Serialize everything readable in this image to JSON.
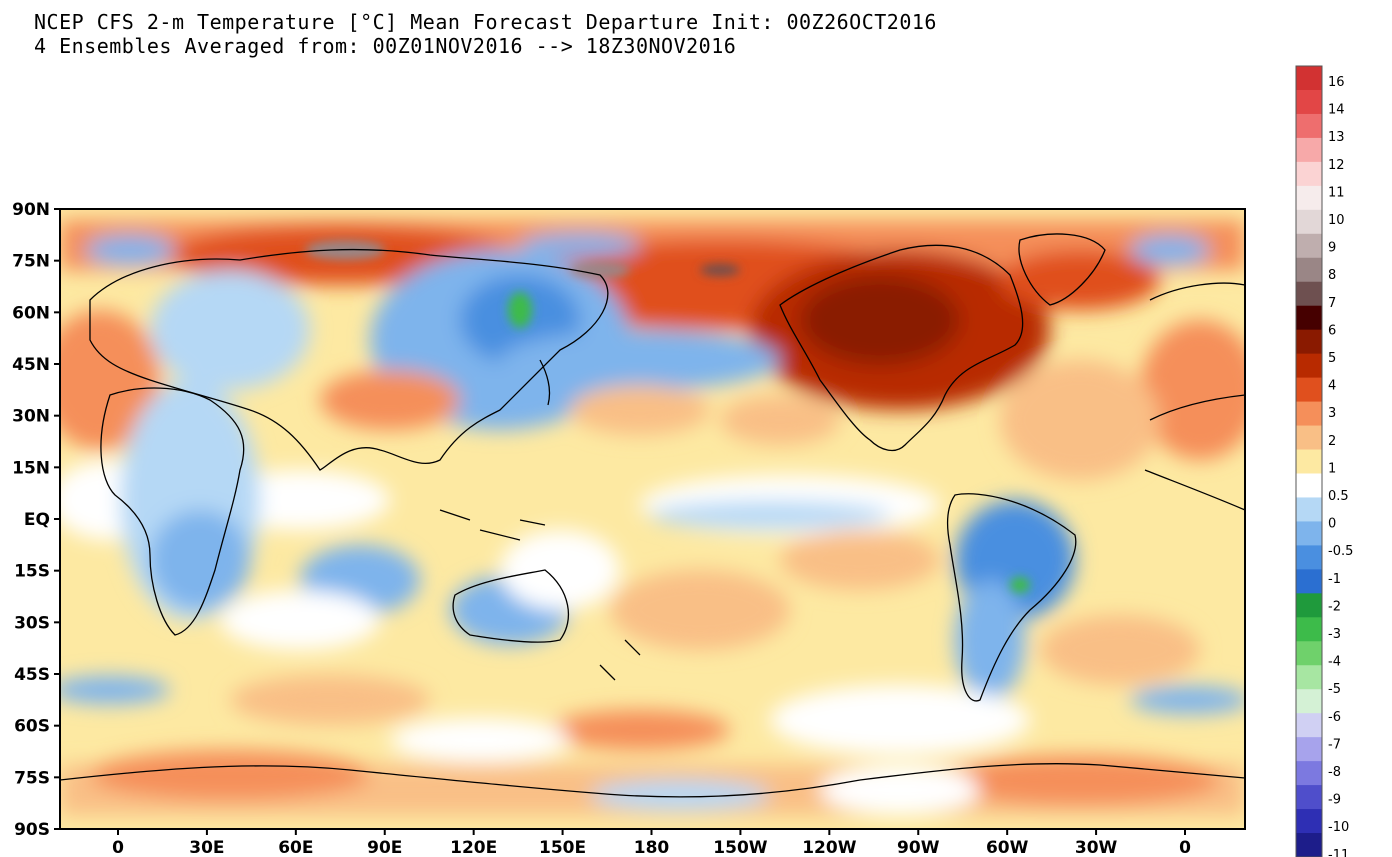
{
  "header": {
    "line1": "NCEP CFS 2-m Temperature [°C] Mean Forecast Departure Init: 00Z26OCT2016",
    "line2": "4 Ensembles Averaged from: 00Z01NOV2016 --> 18Z30NOV2016"
  },
  "map": {
    "lat_labels": [
      "90N",
      "75N",
      "60N",
      "45N",
      "30N",
      "15N",
      "EQ",
      "15S",
      "30S",
      "45S",
      "60S",
      "75S",
      "90S"
    ],
    "lat_values": [
      90,
      75,
      60,
      45,
      30,
      15,
      0,
      -15,
      -30,
      -45,
      -60,
      -75,
      -90
    ],
    "lon_labels": [
      "0",
      "30E",
      "60E",
      "90E",
      "120E",
      "150E",
      "180",
      "150W",
      "120W",
      "90W",
      "60W",
      "30W",
      "0"
    ],
    "lon_values": [
      0,
      30,
      60,
      90,
      120,
      150,
      180,
      210,
      240,
      270,
      300,
      330,
      360
    ]
  },
  "colorbar": {
    "labels": [
      "16",
      "14",
      "13",
      "12",
      "11",
      "10",
      "9",
      "8",
      "7",
      "6",
      "5",
      "4",
      "3",
      "2",
      "1",
      "0.5",
      "0",
      "-0.5",
      "-1",
      "-2",
      "-3",
      "-4",
      "-5",
      "-6",
      "-7",
      "-8",
      "-9",
      "-10",
      "-11"
    ],
    "colors": [
      "#d23232",
      "#e24646",
      "#ee6e6e",
      "#f7a9a9",
      "#fbd3d3",
      "#f6ecec",
      "#e2d7d7",
      "#bfaeae",
      "#9a8686",
      "#6e5050",
      "#460000",
      "#8a1a00",
      "#b82a00",
      "#e0501e",
      "#f58f5a",
      "#f9bf86",
      "#fde9a2",
      "#ffffff",
      "#b5d8f5",
      "#7eb4ec",
      "#4a8fe0",
      "#2b6fd1",
      "#1f9a3c",
      "#3dbb4a",
      "#6fd16b",
      "#a7e6a2",
      "#d4f1d5",
      "#d0d0f3",
      "#a7a3ec",
      "#7c79e0",
      "#4f4ecb",
      "#2e2fb4",
      "#1d1d8a"
    ]
  }
}
